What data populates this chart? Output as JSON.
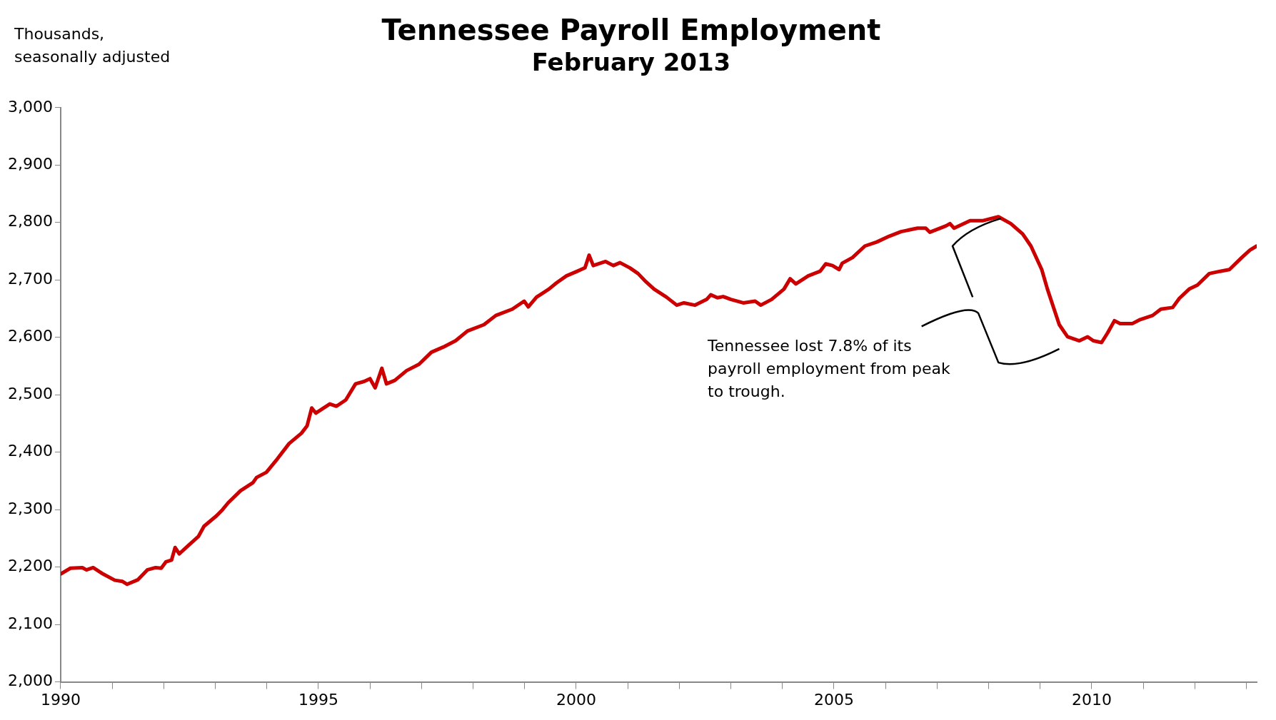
{
  "chart_data": {
    "type": "line",
    "title": "Tennessee Payroll Employment",
    "subtitle": "February 2013",
    "ylabel": "Thousands, seasonally adjusted",
    "series": [
      {
        "color": "#cc0000",
        "x": [
          1990.0,
          1990.19,
          1990.42,
          1990.5,
          1990.63,
          1990.82,
          1991.05,
          1991.2,
          1991.29,
          1991.5,
          1991.68,
          1991.84,
          1991.95,
          1992.04,
          1992.15,
          1992.22,
          1992.3,
          1992.47,
          1992.67,
          1992.78,
          1993.02,
          1993.14,
          1993.25,
          1993.49,
          1993.73,
          1993.8,
          1993.99,
          1994.2,
          1994.43,
          1994.67,
          1994.78,
          1994.87,
          1994.95,
          1995.22,
          1995.35,
          1995.53,
          1995.72,
          1995.88,
          1996.0,
          1996.1,
          1996.23,
          1996.32,
          1996.48,
          1996.71,
          1996.95,
          1997.19,
          1997.42,
          1997.66,
          1997.89,
          1998.21,
          1998.44,
          1998.76,
          1998.99,
          1999.07,
          1999.23,
          1999.47,
          1999.62,
          1999.81,
          2000.02,
          2000.17,
          2000.25,
          2000.33,
          2000.57,
          2000.72,
          2000.85,
          2001.04,
          2001.2,
          2001.35,
          2001.51,
          2001.75,
          2001.95,
          2002.09,
          2002.3,
          2002.53,
          2002.61,
          2002.74,
          2002.85,
          2003.0,
          2003.24,
          2003.47,
          2003.58,
          2003.79,
          2004.03,
          2004.15,
          2004.26,
          2004.5,
          2004.73,
          2004.84,
          2004.97,
          2005.1,
          2005.16,
          2005.36,
          2005.6,
          2005.83,
          2006.07,
          2006.3,
          2006.62,
          2006.78,
          2006.86,
          2007.17,
          2007.25,
          2007.33,
          2007.64,
          2007.88,
          2008.19,
          2008.43,
          2008.66,
          2008.82,
          2009.03,
          2009.14,
          2009.37,
          2009.53,
          2009.76,
          2009.92,
          2010.03,
          2010.19,
          2010.31,
          2010.44,
          2010.55,
          2010.79,
          2010.94,
          2011.18,
          2011.34,
          2011.57,
          2011.7,
          2011.89,
          2012.05,
          2012.28,
          2012.49,
          2012.67,
          2012.91,
          2013.07,
          2013.2
        ],
        "values": [
          2188,
          2198,
          2199,
          2195,
          2199,
          2188,
          2177,
          2175,
          2170,
          2178,
          2195,
          2199,
          2198,
          2209,
          2212,
          2234,
          2223,
          2237,
          2253,
          2271,
          2289,
          2300,
          2312,
          2333,
          2347,
          2356,
          2365,
          2388,
          2415,
          2433,
          2446,
          2477,
          2468,
          2484,
          2480,
          2491,
          2519,
          2523,
          2528,
          2512,
          2546,
          2519,
          2525,
          2542,
          2553,
          2574,
          2583,
          2594,
          2611,
          2622,
          2638,
          2649,
          2663,
          2653,
          2670,
          2684,
          2695,
          2707,
          2715,
          2721,
          2743,
          2725,
          2732,
          2725,
          2730,
          2721,
          2711,
          2697,
          2684,
          2670,
          2656,
          2660,
          2656,
          2666,
          2674,
          2669,
          2671,
          2666,
          2660,
          2663,
          2656,
          2666,
          2684,
          2702,
          2693,
          2707,
          2715,
          2728,
          2725,
          2718,
          2729,
          2739,
          2759,
          2766,
          2776,
          2784,
          2790,
          2790,
          2783,
          2794,
          2798,
          2790,
          2803,
          2803,
          2810,
          2798,
          2780,
          2759,
          2718,
          2684,
          2622,
          2601,
          2594,
          2601,
          2594,
          2591,
          2608,
          2629,
          2624,
          2624,
          2631,
          2638,
          2649,
          2652,
          2668,
          2684,
          2691,
          2711,
          2715,
          2718,
          2739,
          2752,
          2759
        ]
      }
    ],
    "xlim": [
      1990,
      2013.2
    ],
    "xticks": [
      1990,
      {
        "value": 1991,
        "label": null
      },
      {
        "value": 1992,
        "label": null
      },
      {
        "value": 1993,
        "label": null
      },
      {
        "value": 1994,
        "label": null
      },
      1995,
      {
        "value": 1996,
        "label": null
      },
      {
        "value": 1997,
        "label": null
      },
      {
        "value": 1998,
        "label": null
      },
      {
        "value": 1999,
        "label": null
      },
      2000,
      {
        "value": 2001,
        "label": null
      },
      {
        "value": 2002,
        "label": null
      },
      {
        "value": 2003,
        "label": null
      },
      {
        "value": 2004,
        "label": null
      },
      2005,
      {
        "value": 2006,
        "label": null
      },
      {
        "value": 2007,
        "label": null
      },
      {
        "value": 2008,
        "label": null
      },
      {
        "value": 2009,
        "label": null
      },
      2010,
      {
        "value": 2011,
        "label": null
      },
      {
        "value": 2012,
        "label": null
      },
      {
        "value": 2013,
        "label": null
      }
    ],
    "ylim": [
      2000,
      3000
    ],
    "yticks": [
      {
        "value": 2000,
        "label": "2,000"
      },
      {
        "value": 2100,
        "label": "2,100"
      },
      {
        "value": 2200,
        "label": "2,200"
      },
      {
        "value": 2300,
        "label": "2,300"
      },
      {
        "value": 2400,
        "label": "2,400"
      },
      {
        "value": 2500,
        "label": "2,500"
      },
      {
        "value": 2600,
        "label": "2,600"
      },
      {
        "value": 2700,
        "label": "2,700"
      },
      {
        "value": 2800,
        "label": "2,800"
      },
      {
        "value": 2900,
        "label": "2,900"
      },
      {
        "value": 3000,
        "label": "3,000"
      }
    ],
    "grid": false,
    "legend": false,
    "marker": "none",
    "line_style": "solid",
    "annotations": [
      "Tennessee lost 7.8% of its payroll employment from peak to trough."
    ]
  }
}
